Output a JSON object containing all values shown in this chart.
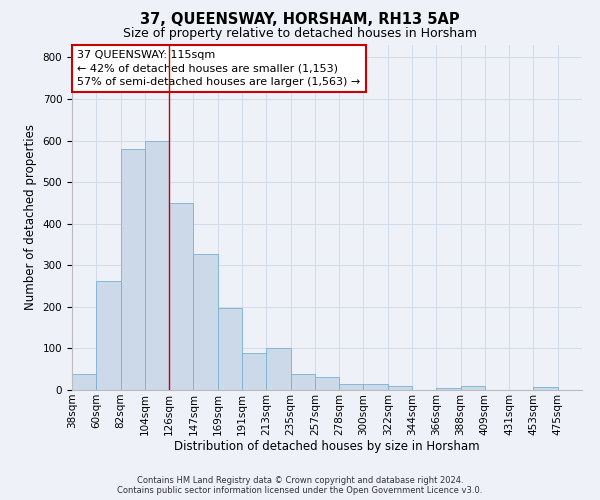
{
  "title": "37, QUEENSWAY, HORSHAM, RH13 5AP",
  "subtitle": "Size of property relative to detached houses in Horsham",
  "xlabel": "Distribution of detached houses by size in Horsham",
  "ylabel": "Number of detached properties",
  "bar_labels": [
    "38sqm",
    "60sqm",
    "82sqm",
    "104sqm",
    "126sqm",
    "147sqm",
    "169sqm",
    "191sqm",
    "213sqm",
    "235sqm",
    "257sqm",
    "278sqm",
    "300sqm",
    "322sqm",
    "344sqm",
    "366sqm",
    "388sqm",
    "409sqm",
    "431sqm",
    "453sqm",
    "475sqm"
  ],
  "bar_heights": [
    38,
    263,
    580,
    600,
    450,
    328,
    197,
    88,
    102,
    38,
    32,
    15,
    15,
    10,
    0,
    5,
    10,
    0,
    0,
    8,
    0
  ],
  "bar_color": "#ccd9e8",
  "bar_edgecolor": "#7ab0d4",
  "grid_color": "#d0dcea",
  "background_color": "#eef2f8",
  "annotation_text": "37 QUEENSWAY: 115sqm\n← 42% of detached houses are smaller (1,153)\n57% of semi-detached houses are larger (1,563) →",
  "annotation_box_color": "#ffffff",
  "annotation_box_edgecolor": "#cc0000",
  "annotation_fontsize": 8.0,
  "ylim": [
    0,
    830
  ],
  "yticks": [
    0,
    100,
    200,
    300,
    400,
    500,
    600,
    700,
    800
  ],
  "footer_line1": "Contains HM Land Registry data © Crown copyright and database right 2024.",
  "footer_line2": "Contains public sector information licensed under the Open Government Licence v3.0.",
  "title_fontsize": 10.5,
  "subtitle_fontsize": 9,
  "xlabel_fontsize": 8.5,
  "ylabel_fontsize": 8.5,
  "tick_fontsize": 7.5,
  "footer_fontsize": 6.0
}
